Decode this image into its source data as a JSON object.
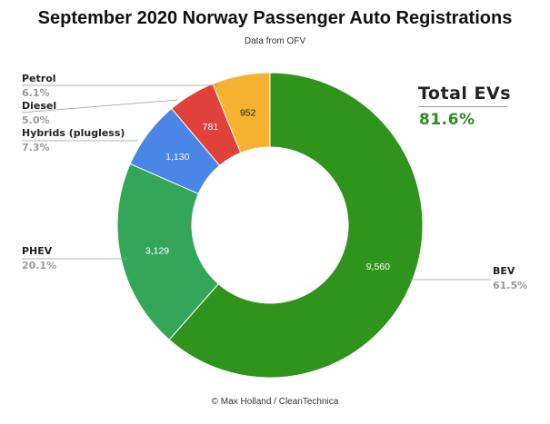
{
  "chart_data": {
    "type": "pie",
    "title": "September 2020 Norway Passenger Auto Registrations",
    "subtitle": "Data from OFV",
    "donut": true,
    "categories": [
      "BEV",
      "PHEV",
      "Hybrids (plugless)",
      "Diesel",
      "Petrol"
    ],
    "values": [
      9560,
      3129,
      1130,
      781,
      952
    ],
    "percent_labels": [
      "61.5%",
      "20.1%",
      "7.3%",
      "5.0%",
      "6.1%"
    ],
    "value_labels": [
      "9,560",
      "3,129",
      "1,130",
      "781",
      "952"
    ],
    "colors": [
      "#2e941c",
      "#34a65a",
      "#4a86e8",
      "#e0413b",
      "#f4b22f"
    ],
    "value_label_colors": [
      "#ffffff",
      "#ffffff",
      "#ffffff",
      "#ffffff",
      "#222222"
    ],
    "annotations": [
      {
        "title": "Total EVs",
        "value": "81.6%"
      }
    ]
  },
  "callout": {
    "title": "Total EVs",
    "value": "81.6%"
  },
  "footer": "© Max Holland / CleanTechnica"
}
